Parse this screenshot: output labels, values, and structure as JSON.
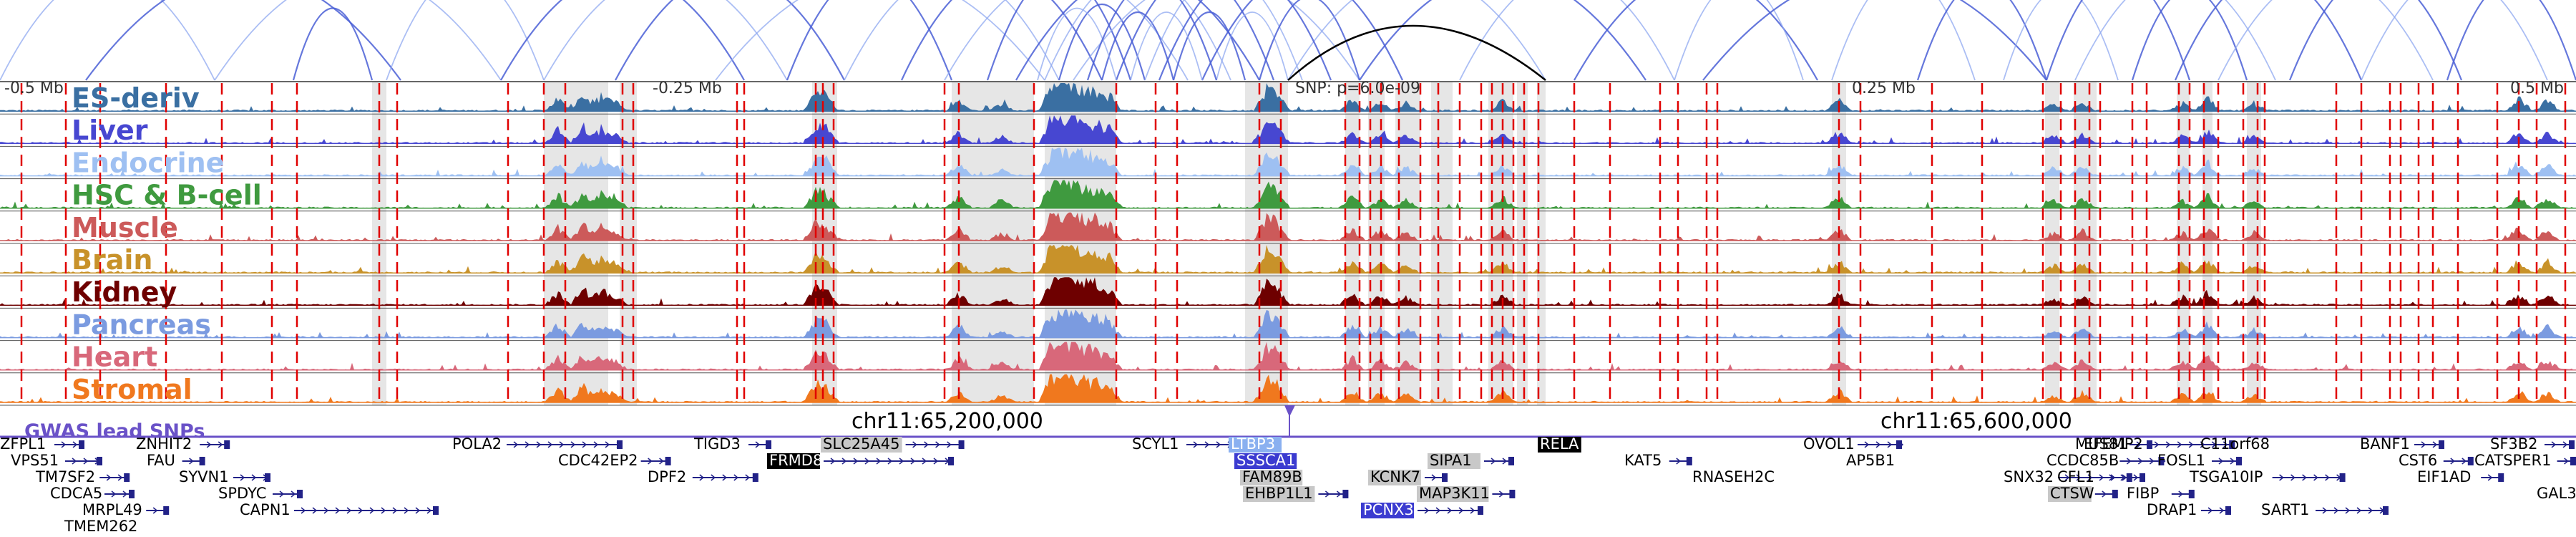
{
  "colors": {
    "arc_blue": "#4a5fd6",
    "arc_light": "#8fa8f0",
    "arc_black": "#000000",
    "highlight_gray": "#e6e6e6",
    "snp_red": "#e00000",
    "gwas": "#6a52c8",
    "gene": "#222288",
    "gene_box_dark": "#000000",
    "gene_box_gray": "#c8c8c8",
    "gene_box_blue": "#3b3bd0",
    "gene_box_light": "#8ab0f0"
  },
  "position_labels": {
    "left": "-0.5 Mb",
    "mid_left": "-0.25 Mb",
    "snp": "SNP: p=6.0e-09",
    "mid_right": "0.25 Mb",
    "right": "0.5 Mb"
  },
  "coordinate_labels": {
    "left": "chr11:65,200,000",
    "right": "chr11:65,600,000"
  },
  "gwas_label": "GWAS lead SNPs",
  "tracks": [
    {
      "name": "ES-deriv",
      "color": "#3a6fa2"
    },
    {
      "name": "Liver",
      "color": "#4747d1"
    },
    {
      "name": "Endocrine",
      "color": "#9ec0f2"
    },
    {
      "name": "HSC & B-cell",
      "color": "#3f9a3f"
    },
    {
      "name": "Muscle",
      "color": "#cc5a5a"
    },
    {
      "name": "Brain",
      "color": "#c8922a"
    },
    {
      "name": "Kidney",
      "color": "#6e0000"
    },
    {
      "name": "Pancreas",
      "color": "#7b9be0"
    },
    {
      "name": "Heart",
      "color": "#d8687a"
    },
    {
      "name": "Stromal",
      "color": "#f0781e"
    }
  ],
  "genes": [
    {
      "name": "ZFPL1",
      "style": "plain"
    },
    {
      "name": "ZNHIT2",
      "style": "plain"
    },
    {
      "name": "VPS51",
      "style": "plain"
    },
    {
      "name": "FAU",
      "style": "plain"
    },
    {
      "name": "TM7SF2",
      "style": "plain"
    },
    {
      "name": "SYVN1",
      "style": "plain"
    },
    {
      "name": "CDCA5",
      "style": "plain"
    },
    {
      "name": "SPDYC",
      "style": "plain"
    },
    {
      "name": "MRPL49",
      "style": "plain"
    },
    {
      "name": "CAPN1",
      "style": "plain"
    },
    {
      "name": "TMEM262",
      "style": "plain"
    },
    {
      "name": "POLA2",
      "style": "plain"
    },
    {
      "name": "CDC42EP2",
      "style": "plain"
    },
    {
      "name": "TIGD3",
      "style": "plain"
    },
    {
      "name": "DPF2",
      "style": "plain"
    },
    {
      "name": "SLC25A45",
      "style": "gray"
    },
    {
      "name": "FRMD8",
      "style": "dark"
    },
    {
      "name": "SCYL1",
      "style": "plain"
    },
    {
      "name": "LTBP3",
      "style": "light"
    },
    {
      "name": "SSSCA1",
      "style": "blue"
    },
    {
      "name": "FAM89B",
      "style": "gray"
    },
    {
      "name": "EHBP1L1",
      "style": "gray"
    },
    {
      "name": "KCNK7",
      "style": "gray"
    },
    {
      "name": "SIPA1",
      "style": "gray"
    },
    {
      "name": "MAP3K11",
      "style": "gray"
    },
    {
      "name": "PCNX3",
      "style": "blue"
    },
    {
      "name": "RELA",
      "style": "dark"
    },
    {
      "name": "KAT5",
      "style": "plain"
    },
    {
      "name": "RNASEH2C",
      "style": "plain"
    },
    {
      "name": "OVOL1",
      "style": "plain"
    },
    {
      "name": "AP5B1",
      "style": "plain"
    },
    {
      "name": "MUS81",
      "style": "plain"
    },
    {
      "name": "EFEMP2",
      "style": "plain"
    },
    {
      "name": "C11orf68",
      "style": "plain"
    },
    {
      "name": "SNX32",
      "style": "plain"
    },
    {
      "name": "CCDC85B",
      "style": "plain"
    },
    {
      "name": "FOSL1",
      "style": "plain"
    },
    {
      "name": "CFL1",
      "style": "plain"
    },
    {
      "name": "CTSW",
      "style": "gray"
    },
    {
      "name": "FIBP",
      "style": "plain"
    },
    {
      "name": "DRAP1",
      "style": "plain"
    },
    {
      "name": "TSGA10IP",
      "style": "plain"
    },
    {
      "name": "SART1",
      "style": "plain"
    },
    {
      "name": "BANF1",
      "style": "plain"
    },
    {
      "name": "CST6",
      "style": "plain"
    },
    {
      "name": "EIF1AD",
      "style": "plain"
    },
    {
      "name": "SF3B2",
      "style": "plain"
    },
    {
      "name": "CATSPER1",
      "style": "plain"
    },
    {
      "name": "GAL3",
      "style": "plain"
    }
  ]
}
